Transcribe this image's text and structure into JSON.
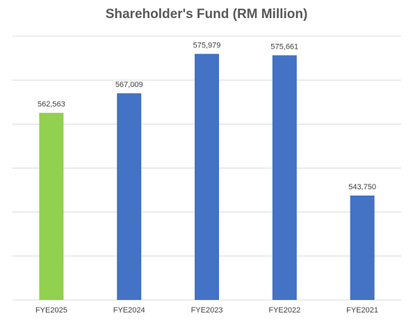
{
  "chart_data": {
    "type": "bar",
    "title": "Shareholder's Fund (RM Million)",
    "xlabel": "",
    "ylabel": "",
    "categories": [
      "FYE2025",
      "FYE2024",
      "FYE2023",
      "FYE2022",
      "FYE2021"
    ],
    "values": [
      562563,
      567009,
      575979,
      575661,
      543750
    ],
    "value_labels": [
      "562,563",
      "567,009",
      "575,979",
      "575,661",
      "543,750"
    ],
    "ylim": [
      520000,
      580000
    ],
    "y_tick_step": 10000,
    "grid": true,
    "y_tick_labels_visible": false,
    "legend": "none",
    "colors": {
      "highlight": "#92d050",
      "default": "#4472c4"
    },
    "highlight_index": 0
  }
}
